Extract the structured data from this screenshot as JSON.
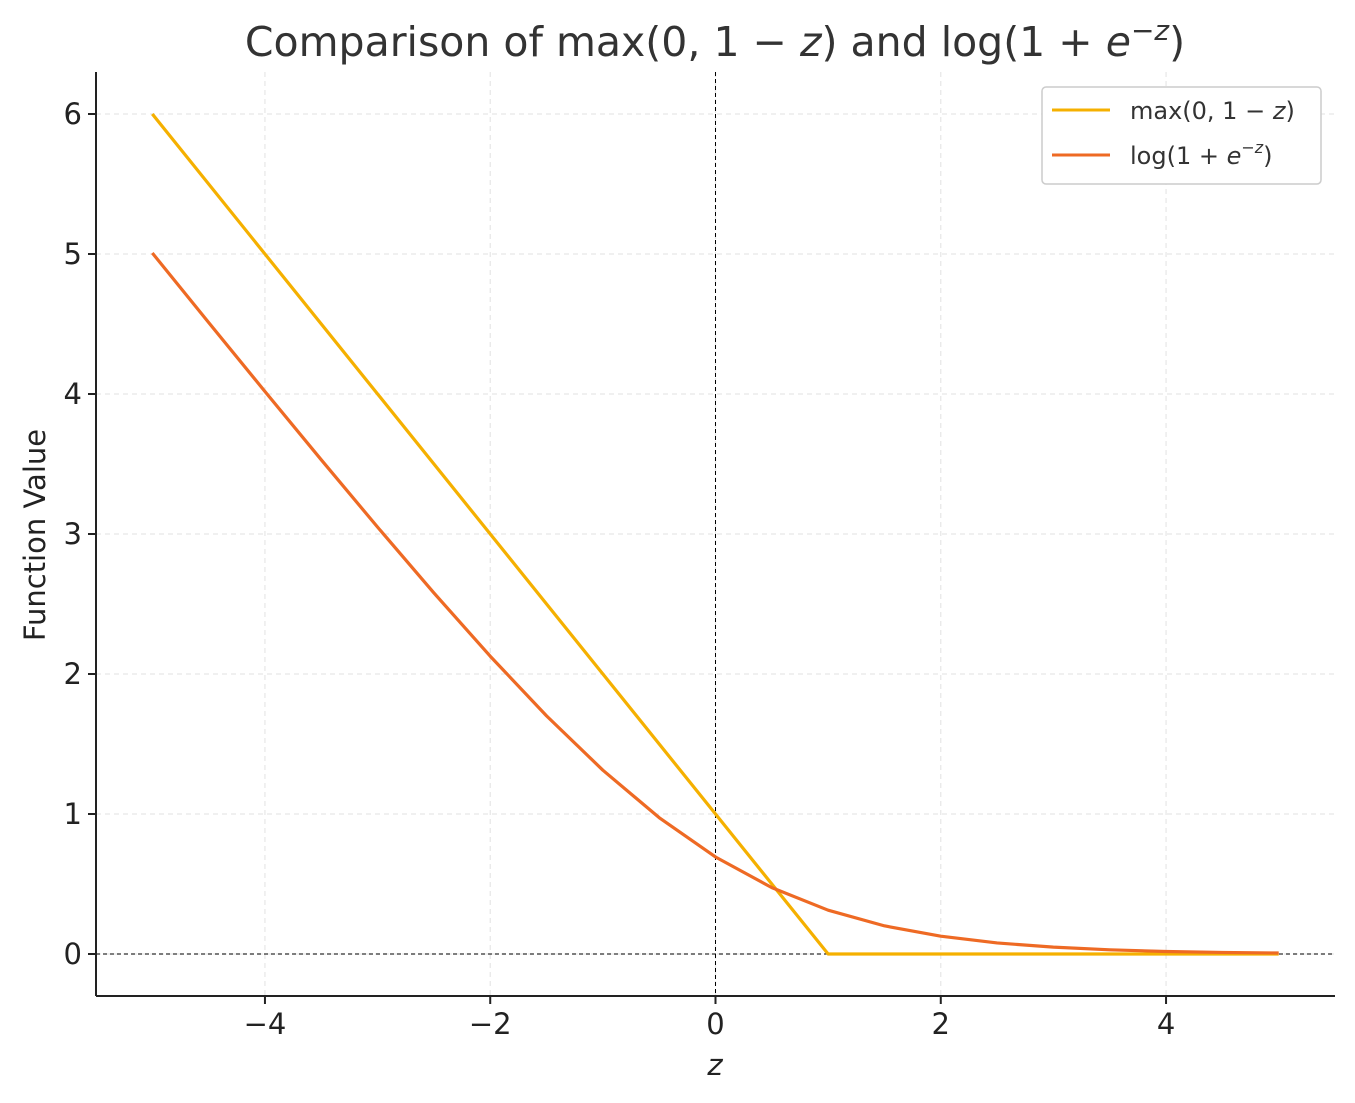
{
  "chart_data": {
    "type": "line",
    "title": "Comparison of max(0, 1 − z) and log(1 + e^−z)",
    "title_parts": {
      "lead": "Comparison of ",
      "hinge": "max(0, 1 − ",
      "z": "z",
      "close": ")",
      "and": " and ",
      "log_open": "log(1 + ",
      "e": "e",
      "sup": "−z",
      "log_close": ")"
    },
    "xlabel": "z",
    "ylabel": "Function Value",
    "xlim": [
      -5.5,
      5.5
    ],
    "ylim": [
      -0.3,
      6.3
    ],
    "xticks": [
      -4,
      -2,
      0,
      2,
      4
    ],
    "xtick_labels": [
      "−4",
      "−2",
      "0",
      "2",
      "4"
    ],
    "yticks": [
      0,
      1,
      2,
      3,
      4,
      5,
      6
    ],
    "ytick_labels": [
      "0",
      "1",
      "2",
      "3",
      "4",
      "5",
      "6"
    ],
    "grid": true,
    "reference_lines": {
      "vertical_x": 0,
      "horizontal_y": 0,
      "style": "dashed",
      "color": "#000000"
    },
    "legend_position": "top-right",
    "series": [
      {
        "name": "max(0, 1 − z)",
        "label_parts": {
          "pre": "max(0, 1 − ",
          "var": "z",
          "post": ")"
        },
        "color": "#F5B000",
        "x": [
          -5,
          -4,
          -3,
          -2,
          -1,
          0,
          1,
          2,
          3,
          4,
          5
        ],
        "y": [
          6,
          5,
          4,
          3,
          2,
          1,
          0,
          0,
          0,
          0,
          0
        ]
      },
      {
        "name": "log(1 + e^−z)",
        "label_parts": {
          "pre": "log(1 + ",
          "var": "e",
          "sup": "−z",
          "post": ")"
        },
        "color": "#EE6A24",
        "x": [
          -5,
          -4.5,
          -4,
          -3.5,
          -3,
          -2.5,
          -2,
          -1.5,
          -1,
          -0.5,
          0,
          0.5,
          1,
          1.5,
          2,
          2.5,
          3,
          3.5,
          4,
          4.5,
          5
        ],
        "y": [
          5.007,
          4.511,
          4.018,
          3.53,
          3.049,
          2.579,
          2.127,
          1.701,
          1.313,
          0.974,
          0.693,
          0.474,
          0.313,
          0.201,
          0.127,
          0.079,
          0.049,
          0.03,
          0.018,
          0.011,
          0.007
        ]
      }
    ]
  }
}
